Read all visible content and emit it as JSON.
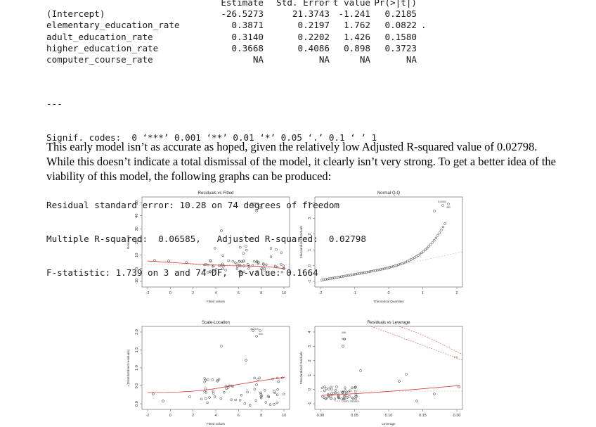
{
  "coefficients": {
    "header": [
      "",
      "Estimate",
      "Std. Error",
      "t value",
      "Pr(>|t|)",
      ""
    ],
    "rows": [
      [
        "(Intercept)",
        "-26.5273",
        "21.3743",
        "-1.241",
        "0.2185",
        ""
      ],
      [
        "elementary_education_rate",
        "0.3871",
        "0.2197",
        "1.762",
        "0.0822",
        "."
      ],
      [
        "adult_education_rate",
        "0.3140",
        "0.2202",
        "1.426",
        "0.1580",
        ""
      ],
      [
        "higher_education_rate",
        "0.3668",
        "0.4086",
        "0.898",
        "0.3723",
        ""
      ],
      [
        "computer_course_rate",
        "NA",
        "NA",
        "NA",
        "NA",
        ""
      ]
    ]
  },
  "separator": "---",
  "signif_codes": "Signif. codes:  0 ‘***’ 0.001 ‘**’ 0.01 ‘*’ 0.05 ‘.’ 0.1 ‘ ’ 1",
  "residual_se": "Residual standard error: 10.28 on 74 degrees of freedom",
  "r_squared": "Multiple R-squared:  0.06585,\tAdjusted R-squared:  0.02798 ",
  "f_statistic": "F-statistic: 1.739 on 3 and 74 DF,  p-value: 0.1664",
  "paragraph": "This early model isn’t as accurate as hoped, given the relatively low Adjusted R-squared value of 0.02798. While this doesn’t indicate a total dismissal of the model, it clearly isn’t very strong. To get a better idea of the viability of this model, the following graphs can be produced:",
  "plots": {
    "residuals_fitted": {
      "title": "Residuals vs Fitted",
      "xlabel": "Fitted values",
      "ylabel": "Residuals",
      "xticks": [
        "-2",
        "0",
        "2",
        "4",
        "6",
        "8",
        "10"
      ],
      "yticks": [
        "-10",
        "0",
        "10",
        "20",
        "30",
        "40",
        "50"
      ],
      "point_labels": [
        "452",
        "510",
        "500"
      ]
    },
    "normal_qq": {
      "title": "Normal Q-Q",
      "xlabel": "Theoretical Quantiles",
      "ylabel": "Standardized residuals",
      "xticks": [
        "-2",
        "-1",
        "0",
        "1",
        "2"
      ],
      "yticks": [
        "-1",
        "0",
        "1",
        "2",
        "3",
        "4"
      ],
      "point_labels": [
        "510",
        "500",
        "482"
      ]
    },
    "scale_location": {
      "title": "Scale-Location",
      "xlabel": "Fitted values",
      "ylabel": "√|Standardized residuals|",
      "xticks": [
        "-2",
        "0",
        "2",
        "4",
        "6",
        "8",
        "10"
      ],
      "yticks": [
        "0.0",
        "0.5",
        "1.0",
        "1.5",
        "2.0"
      ],
      "point_labels": [
        "452",
        "510",
        "500"
      ]
    },
    "residuals_leverage": {
      "title": "Residuals vs Leverage",
      "xlabel": "Leverage",
      "ylabel": "Standardized residuals",
      "xticks": [
        "0.00",
        "0.05",
        "0.10",
        "0.15",
        "0.20"
      ],
      "yticks": [
        "-1",
        "0",
        "1",
        "2",
        "3",
        "4"
      ],
      "point_labels": [
        "496",
        "500"
      ],
      "legend": "Cook's distance",
      "contour_label": "0.5"
    }
  },
  "colors": {
    "smoother": "#e02020",
    "reference": "#aaaaaa",
    "points": "#333333"
  }
}
